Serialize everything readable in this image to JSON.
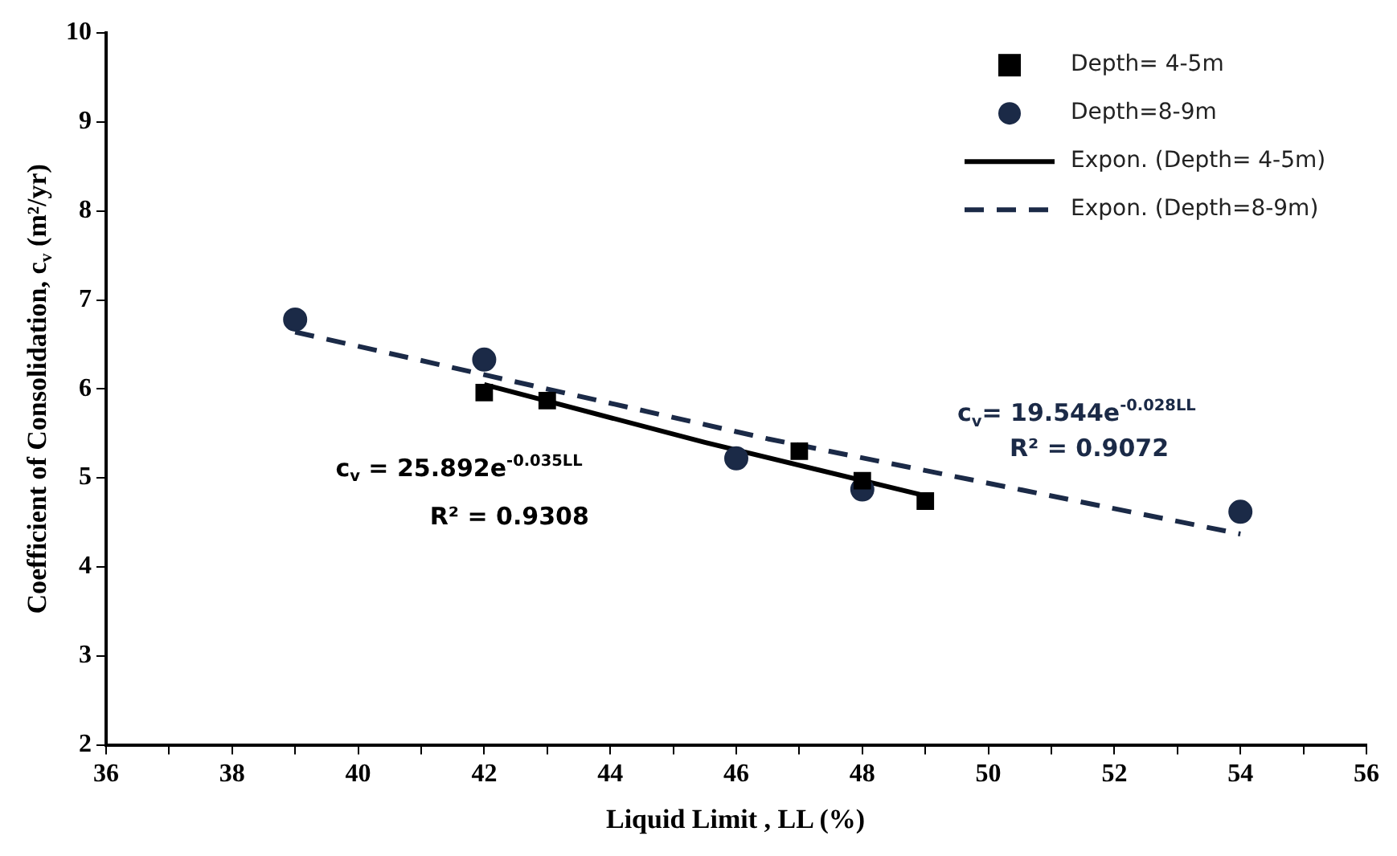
{
  "chart_data": {
    "type": "scatter",
    "xlabel": "Liquid Limit , LL (%)",
    "ylabel": "Coefficient of Consolidation, c$_{v}$ (m²/yr)",
    "xlim": [
      36,
      56
    ],
    "xticks": [
      36,
      {
        "value": 37,
        "label": null
      },
      38,
      {
        "value": 39,
        "label": null
      },
      40,
      {
        "value": 41,
        "label": null
      },
      42,
      {
        "value": 43,
        "label": null
      },
      44,
      {
        "value": 45,
        "label": null
      },
      46,
      {
        "value": 47,
        "label": null
      },
      48,
      {
        "value": 49,
        "label": null
      },
      50,
      {
        "value": 51,
        "label": null
      },
      52,
      {
        "value": 53,
        "label": null
      },
      54,
      {
        "value": 55,
        "label": null
      },
      56
    ],
    "ylim": [
      2,
      10
    ],
    "yticks": [
      2,
      3,
      4,
      5,
      6,
      7,
      8,
      9,
      10
    ],
    "grid": false,
    "legend": "top right",
    "series": [
      {
        "name": "Depth= 4-5m",
        "marker": "square",
        "color": "#000000",
        "x": [
          42,
          43,
          47,
          48,
          49
        ],
        "values": [
          5.96,
          5.87,
          5.3,
          4.97,
          4.74
        ]
      },
      {
        "name": "Depth=8-9m",
        "marker": "circle",
        "color": "#1b2a47",
        "x": [
          39,
          42,
          46,
          48,
          54
        ],
        "values": [
          6.78,
          6.33,
          5.22,
          4.87,
          4.62
        ]
      },
      {
        "name": "Expon. (Depth= 4-5m)",
        "type": "line",
        "line_style": "solid",
        "marker": "none",
        "color": "#000000",
        "x": [
          42,
          45.5,
          49
        ],
        "values": [
          6.05,
          5.4,
          4.8
        ]
      },
      {
        "name": "Expon. (Depth=8-9m)",
        "type": "line",
        "line_style": "dashed",
        "marker": "none",
        "color": "#1b2a47",
        "x": [
          39,
          46.5,
          54
        ],
        "values": [
          6.64,
          5.44,
          4.37
        ]
      }
    ],
    "annotations": [
      "c$_{v}$ = 25.892e$^{-0.035LL}$",
      "R² = 0.9308",
      "c$_{v}$= 19.544e$^{-0.028LL}$",
      "R² = 0.9072"
    ]
  }
}
